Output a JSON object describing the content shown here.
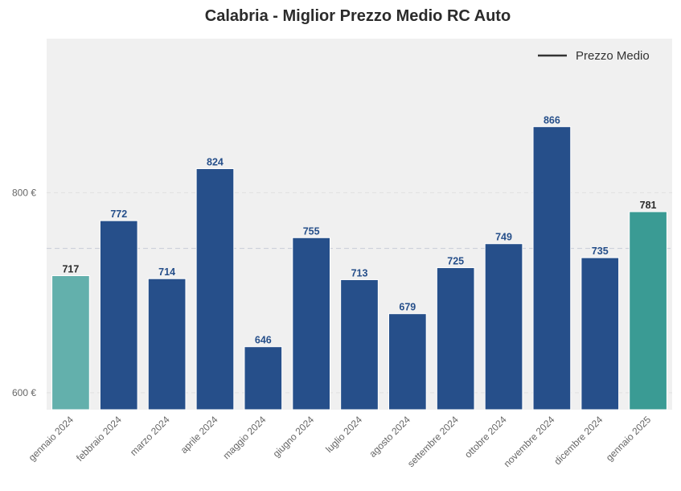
{
  "chart_data": {
    "type": "bar",
    "title": "Calabria - Miglior Prezzo Medio RC Auto",
    "xlabel": "",
    "ylabel": "",
    "categories": [
      "gennaio 2024",
      "febbraio 2024",
      "marzo 2024",
      "aprile 2024",
      "maggio 2024",
      "giugno 2024",
      "luglio 2024",
      "agosto 2024",
      "settembre 2024",
      "ottobre 2024",
      "novembre 2024",
      "dicembre 2024",
      "gennaio 2025"
    ],
    "values": [
      717,
      772,
      714,
      824,
      646,
      755,
      713,
      679,
      725,
      749,
      866,
      735,
      781
    ],
    "data_labels": [
      "717",
      "772",
      "714",
      "824",
      "646",
      "755",
      "713",
      "679",
      "725",
      "749",
      "866",
      "735",
      "781"
    ],
    "bar_colors": [
      "#63b0ac",
      "#264f8a",
      "#264f8a",
      "#264f8a",
      "#264f8a",
      "#264f8a",
      "#264f8a",
      "#264f8a",
      "#264f8a",
      "#264f8a",
      "#264f8a",
      "#264f8a",
      "#3a9b94"
    ],
    "label_colors": [
      "#2b2b2b",
      "#264f8a",
      "#264f8a",
      "#264f8a",
      "#264f8a",
      "#264f8a",
      "#264f8a",
      "#264f8a",
      "#264f8a",
      "#264f8a",
      "#264f8a",
      "#264f8a",
      "#2b2b2b"
    ],
    "ylim": [
      583,
      954
    ],
    "yticks": [
      {
        "value": 600,
        "label": "600 €"
      },
      {
        "value": 800,
        "label": "800 €"
      }
    ],
    "average_line": {
      "value": 744.3,
      "style": "dashed"
    },
    "legend": {
      "entries": [
        "Prezzo Medio"
      ],
      "placement": "top-right"
    },
    "grid": true,
    "colors": {
      "background": "#f0f0f0",
      "grid": "#e0e0e0",
      "average_line": "#c7cbd6",
      "legend_line": "#333333"
    }
  }
}
